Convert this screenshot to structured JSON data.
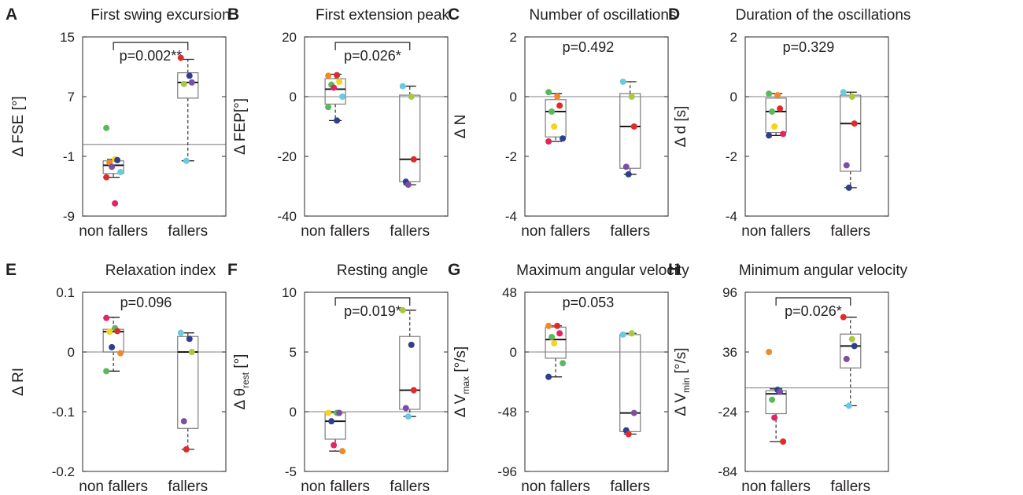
{
  "colors": {
    "ink": "#231f20",
    "frame": "#4d4d4d",
    "zero_line": "#9a9a9a",
    "box_stroke": "#7d7d7d",
    "median": "#1a1a1a",
    "subjects": {
      "green": "#5cb85c",
      "yellow": "#f7d21e",
      "blue": "#2e3f8f",
      "orange": "#ef8a2c",
      "red": "#e02b2b",
      "pink": "#e0265f",
      "purple": "#7b4fa3",
      "cyan": "#6cc9e0",
      "lime": "#a8c840"
    }
  },
  "chart_data": [
    {
      "letter": "A",
      "title": "First swing excursion",
      "type": "boxplot",
      "ylabel": "Δ FSE [°]",
      "ylabel_sub": "",
      "ylim": [
        -9,
        15
      ],
      "yticks": [
        15,
        7,
        -1,
        -9
      ],
      "ytick_labels": [
        "15",
        "7",
        "-1",
        "-9"
      ],
      "hline": 0.6,
      "categories": [
        "non fallers",
        "fallers"
      ],
      "stat": {
        "text": "p=0.002**",
        "bracket": true
      },
      "groups": [
        {
          "box": {
            "q1": -3.3,
            "median": -2.2,
            "q3": -1.6,
            "whisker_low": -3.8,
            "whisker_high": -1.4
          },
          "points": [
            {
              "color": "green",
              "y": 2.8
            },
            {
              "color": "yellow",
              "y": -1.4
            },
            {
              "color": "blue",
              "y": -1.5
            },
            {
              "color": "orange",
              "y": -1.8
            },
            {
              "color": "purple",
              "y": -2.4
            },
            {
              "color": "cyan",
              "y": -3.1
            },
            {
              "color": "red",
              "y": -3.8
            },
            {
              "color": "pink",
              "y": -7.3
            }
          ]
        },
        {
          "box": {
            "q1": 6.8,
            "median": 8.9,
            "q3": 10.2,
            "whisker_low": -1.6,
            "whisker_high": 12.0
          },
          "points": [
            {
              "color": "red",
              "y": 12.2
            },
            {
              "color": "blue",
              "y": 9.8
            },
            {
              "color": "purple",
              "y": 8.9
            },
            {
              "color": "lime",
              "y": 8.7
            },
            {
              "color": "cyan",
              "y": -1.6
            }
          ]
        }
      ]
    },
    {
      "letter": "B",
      "title": "First extension peak",
      "type": "boxplot",
      "ylabel": "Δ FEP[°]",
      "ylabel_sub": "",
      "ylim": [
        -40,
        20
      ],
      "yticks": [
        20,
        0,
        -20,
        -40
      ],
      "ytick_labels": [
        "20",
        "0",
        "-20",
        "-40"
      ],
      "hline": 0,
      "categories": [
        "non fallers",
        "fallers"
      ],
      "stat": {
        "text": "p=0.026*",
        "bracket": true
      },
      "groups": [
        {
          "box": {
            "q1": -2.5,
            "median": 2.5,
            "q3": 6.0,
            "whisker_low": -8.0,
            "whisker_high": 7.5
          },
          "points": [
            {
              "color": "orange",
              "y": 7.0
            },
            {
              "color": "red",
              "y": 7.2
            },
            {
              "color": "yellow",
              "y": 5.0
            },
            {
              "color": "green",
              "y": 4.0
            },
            {
              "color": "pink",
              "y": 3.0
            },
            {
              "color": "cyan",
              "y": 0.0
            },
            {
              "color": "green",
              "y": -3.5
            },
            {
              "color": "blue",
              "y": -8.0
            }
          ]
        },
        {
          "box": {
            "q1": -28.5,
            "median": -21.0,
            "q3": 0.5,
            "whisker_low": -29.5,
            "whisker_high": 3.5
          },
          "points": [
            {
              "color": "cyan",
              "y": 3.5
            },
            {
              "color": "lime",
              "y": 0.0
            },
            {
              "color": "red",
              "y": -21.0
            },
            {
              "color": "blue",
              "y": -28.5
            },
            {
              "color": "purple",
              "y": -29.5
            }
          ]
        }
      ]
    },
    {
      "letter": "C",
      "title": "Number of oscillations",
      "type": "boxplot",
      "ylabel": "Δ N",
      "ylabel_sub": "",
      "ylim": [
        -4,
        2
      ],
      "yticks": [
        2,
        0,
        -2,
        -4
      ],
      "ytick_labels": [
        "2",
        "0",
        "-2",
        "-4"
      ],
      "hline": 0,
      "categories": [
        "non fallers",
        "fallers"
      ],
      "stat": {
        "text": "p=0.492",
        "bracket": false
      },
      "groups": [
        {
          "box": {
            "q1": -1.35,
            "median": -0.5,
            "q3": -0.1,
            "whisker_low": -1.5,
            "whisker_high": 0.1
          },
          "points": [
            {
              "color": "green",
              "y": 0.15
            },
            {
              "color": "orange",
              "y": 0.0
            },
            {
              "color": "red",
              "y": -0.3
            },
            {
              "color": "green",
              "y": -0.5
            },
            {
              "color": "yellow",
              "y": -1.0
            },
            {
              "color": "blue",
              "y": -1.4
            },
            {
              "color": "pink",
              "y": -1.5
            }
          ]
        },
        {
          "box": {
            "q1": -2.4,
            "median": -1.0,
            "q3": 0.1,
            "whisker_low": -2.6,
            "whisker_high": 0.5
          },
          "points": [
            {
              "color": "cyan",
              "y": 0.5
            },
            {
              "color": "lime",
              "y": 0.0
            },
            {
              "color": "red",
              "y": -1.0
            },
            {
              "color": "purple",
              "y": -2.35
            },
            {
              "color": "blue",
              "y": -2.6
            }
          ]
        }
      ]
    },
    {
      "letter": "D",
      "title": "Duration of the oscillations",
      "type": "boxplot",
      "ylabel": "Δ d [s]",
      "ylabel_sub": "",
      "ylim": [
        -4,
        2
      ],
      "yticks": [
        2,
        0,
        -2,
        -4
      ],
      "ytick_labels": [
        "2",
        "0",
        "-2",
        "-4"
      ],
      "hline": 0,
      "categories": [
        "non fallers",
        "fallers"
      ],
      "stat": {
        "text": "p=0.329",
        "bracket": false
      },
      "groups": [
        {
          "box": {
            "q1": -1.2,
            "median": -0.5,
            "q3": -0.05,
            "whisker_low": -1.3,
            "whisker_high": 0.1
          },
          "points": [
            {
              "color": "green",
              "y": 0.1
            },
            {
              "color": "orange",
              "y": 0.05
            },
            {
              "color": "red",
              "y": -0.4
            },
            {
              "color": "green",
              "y": -0.5
            },
            {
              "color": "yellow",
              "y": -1.0
            },
            {
              "color": "pink",
              "y": -1.25
            },
            {
              "color": "blue",
              "y": -1.3
            }
          ]
        },
        {
          "box": {
            "q1": -2.5,
            "median": -0.9,
            "q3": 0.05,
            "whisker_low": -3.05,
            "whisker_high": 0.15
          },
          "points": [
            {
              "color": "cyan",
              "y": 0.15
            },
            {
              "color": "lime",
              "y": 0.0
            },
            {
              "color": "red",
              "y": -0.9
            },
            {
              "color": "purple",
              "y": -2.3
            },
            {
              "color": "blue",
              "y": -3.05
            }
          ]
        }
      ]
    },
    {
      "letter": "E",
      "title": "Relaxation index",
      "type": "boxplot",
      "ylabel": "Δ RI",
      "ylabel_sub": "",
      "ylim": [
        -0.2,
        0.1
      ],
      "yticks": [
        0.1,
        0,
        -0.1,
        -0.2
      ],
      "ytick_labels": [
        "0.1",
        "0",
        "-0.1",
        "-0.2"
      ],
      "hline": 0,
      "categories": [
        "non fallers",
        "fallers"
      ],
      "stat": {
        "text": "p=0.096",
        "bracket": false
      },
      "groups": [
        {
          "box": {
            "q1": 0.0,
            "median": 0.034,
            "q3": 0.038,
            "whisker_low": -0.032,
            "whisker_high": 0.058
          },
          "points": [
            {
              "color": "pink",
              "y": 0.057
            },
            {
              "color": "green",
              "y": 0.04
            },
            {
              "color": "red",
              "y": 0.035
            },
            {
              "color": "yellow",
              "y": 0.034
            },
            {
              "color": "blue",
              "y": 0.008
            },
            {
              "color": "orange",
              "y": -0.002
            },
            {
              "color": "green",
              "y": -0.032
            }
          ]
        },
        {
          "box": {
            "q1": -0.128,
            "median": 0.0,
            "q3": 0.026,
            "whisker_low": -0.163,
            "whisker_high": 0.032
          },
          "points": [
            {
              "color": "cyan",
              "y": 0.032
            },
            {
              "color": "blue",
              "y": 0.022
            },
            {
              "color": "lime",
              "y": 0.0
            },
            {
              "color": "purple",
              "y": -0.116
            },
            {
              "color": "red",
              "y": -0.163
            }
          ]
        }
      ]
    },
    {
      "letter": "F",
      "title": "Resting angle",
      "type": "boxplot",
      "ylabel": "Δ θ",
      "ylabel_sub": "rest",
      "ylabel_unit": " [°]",
      "ylim": [
        -5,
        10
      ],
      "yticks": [
        10,
        5,
        0,
        -5
      ],
      "ytick_labels": [
        "10",
        "5",
        "0",
        "-5"
      ],
      "hline": 0,
      "categories": [
        "non fallers",
        "fallers"
      ],
      "stat": {
        "text": "p=0.019*",
        "bracket": true
      },
      "groups": [
        {
          "box": {
            "q1": -2.3,
            "median": -0.8,
            "q3": -0.1,
            "whisker_low": -3.3,
            "whisker_high": 0.0
          },
          "points": [
            {
              "color": "yellow",
              "y": -0.1
            },
            {
              "color": "green",
              "y": -0.1
            },
            {
              "color": "purple",
              "y": -0.1
            },
            {
              "color": "blue",
              "y": -0.8
            },
            {
              "color": "pink",
              "y": -2.8
            },
            {
              "color": "orange",
              "y": -3.3
            }
          ]
        },
        {
          "box": {
            "q1": 0.2,
            "median": 1.8,
            "q3": 6.3,
            "whisker_low": -0.4,
            "whisker_high": 8.5
          },
          "points": [
            {
              "color": "lime",
              "y": 8.5
            },
            {
              "color": "blue",
              "y": 5.6
            },
            {
              "color": "red",
              "y": 1.8
            },
            {
              "color": "purple",
              "y": 0.3
            },
            {
              "color": "cyan",
              "y": -0.4
            }
          ]
        }
      ]
    },
    {
      "letter": "G",
      "title": "Maximum angular velocity",
      "type": "boxplot",
      "ylabel": "Δ V",
      "ylabel_sub": "max",
      "ylabel_unit": " [°/s]",
      "ylim": [
        -96,
        48
      ],
      "yticks": [
        48,
        0,
        -48,
        -96
      ],
      "ytick_labels": [
        "48",
        "0",
        "-48",
        "-96"
      ],
      "hline": 0,
      "categories": [
        "non fallers",
        "fallers"
      ],
      "stat": {
        "text": "p=0.053",
        "bracket": false
      },
      "groups": [
        {
          "box": {
            "q1": -5.0,
            "median": 10.0,
            "q3": 20.0,
            "whisker_low": -20.0,
            "whisker_high": 21.0
          },
          "points": [
            {
              "color": "orange",
              "y": 21.0
            },
            {
              "color": "red",
              "y": 21.0
            },
            {
              "color": "pink",
              "y": 15.0
            },
            {
              "color": "green",
              "y": 12.0
            },
            {
              "color": "yellow",
              "y": 7.0
            },
            {
              "color": "green",
              "y": -9.0
            },
            {
              "color": "blue",
              "y": -20.0
            }
          ]
        },
        {
          "box": {
            "q1": -64.0,
            "median": -49.0,
            "q3": 14.0,
            "whisker_low": -66.0,
            "whisker_high": 15.0
          },
          "points": [
            {
              "color": "cyan",
              "y": 14.0
            },
            {
              "color": "lime",
              "y": 15.0
            },
            {
              "color": "purple",
              "y": -49.0
            },
            {
              "color": "blue",
              "y": -63.0
            },
            {
              "color": "red",
              "y": -66.0
            }
          ]
        }
      ]
    },
    {
      "letter": "H",
      "title": "Minimum angular velocity",
      "type": "boxplot",
      "ylabel": "Δ V",
      "ylabel_sub": "min",
      "ylabel_unit": " [°/s]",
      "ylim": [
        -84,
        96
      ],
      "yticks": [
        96,
        36,
        -24,
        -84
      ],
      "ytick_labels": [
        "96",
        "36",
        "-24",
        "-84"
      ],
      "hline": 0,
      "categories": [
        "non fallers",
        "fallers"
      ],
      "stat": {
        "text": "p=0.026*",
        "bracket": true
      },
      "groups": [
        {
          "box": {
            "q1": -26.0,
            "median": -6.0,
            "q3": -3.0,
            "whisker_low": -54.0,
            "whisker_high": -1.0
          },
          "points": [
            {
              "color": "orange",
              "y": 36.0
            },
            {
              "color": "blue",
              "y": -2.0
            },
            {
              "color": "purple",
              "y": -4.0
            },
            {
              "color": "green",
              "y": -12.0
            },
            {
              "color": "pink",
              "y": -30.0
            },
            {
              "color": "red",
              "y": -54.0
            }
          ]
        },
        {
          "box": {
            "q1": 20.0,
            "median": 42.0,
            "q3": 54.0,
            "whisker_low": -18.0,
            "whisker_high": 71.0
          },
          "points": [
            {
              "color": "red",
              "y": 71.0
            },
            {
              "color": "lime",
              "y": 49.0
            },
            {
              "color": "blue",
              "y": 42.0
            },
            {
              "color": "purple",
              "y": 29.0
            },
            {
              "color": "cyan",
              "y": -18.0
            }
          ]
        }
      ]
    }
  ]
}
